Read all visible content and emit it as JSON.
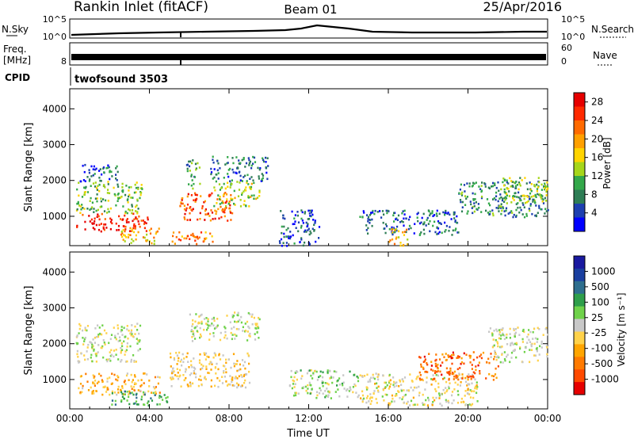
{
  "header": {
    "station": "Rankin Inlet (fitACF)",
    "beam": "Beam 01",
    "date": "25/Apr/2016"
  },
  "noise_panel": {
    "left_label": "N.Sky",
    "right_label": "N.Search",
    "left_ticks": [
      "10^5",
      "10^0"
    ],
    "right_ticks": [
      "10^5",
      "10^0"
    ]
  },
  "freq_panel": {
    "left_label_1": "Freq.",
    "left_label_2": "[MHz]",
    "right_label": "Nave",
    "left_ticks": [
      "8"
    ],
    "right_ticks": [
      "60",
      "0"
    ]
  },
  "cpid": {
    "label": "CPID",
    "value": "twofsound 3503"
  },
  "colors": {
    "power_scale": [
      "#0000ff",
      "#1d3fb0",
      "#2e7d55",
      "#33a84a",
      "#a6d61a",
      "#ffd400",
      "#ffa000",
      "#ff6a00",
      "#ff2a00",
      "#e60000"
    ],
    "velocity_scale": [
      "#e60000",
      "#ff4a00",
      "#ff7a00",
      "#ffa500",
      "#ffd24a",
      "#c8c8c8",
      "#6fd24a",
      "#2e9e4a",
      "#2e6e8e",
      "#1a3fa0",
      "#1a1aa0"
    ]
  },
  "chart_data": [
    {
      "type": "heatmap",
      "name": "power",
      "ylabel": "Slant Range [km]",
      "xlabel": "Time UT",
      "x_ticks": [
        "00:00",
        "04:00",
        "08:00",
        "12:00",
        "16:00",
        "20:00",
        "00:00"
      ],
      "y_ticks": [
        "1000",
        "2000",
        "3000",
        "4000"
      ],
      "ylim": [
        180,
        4560
      ],
      "xlim_hours": [
        0,
        24
      ],
      "colorbar": {
        "label": "Power [dB]",
        "ticks": [
          "4",
          "8",
          "12",
          "16",
          "20",
          "24",
          "28"
        ],
        "range": [
          0,
          30
        ]
      },
      "echo_regions": [
        {
          "t0": 0.3,
          "t1": 3.9,
          "r0": 600,
          "r1": 1100,
          "value": 26
        },
        {
          "t0": 0.3,
          "t1": 3.6,
          "r0": 1100,
          "r1": 2000,
          "value": 12
        },
        {
          "t0": 0.5,
          "t1": 2.5,
          "r0": 2000,
          "r1": 2500,
          "value": 6
        },
        {
          "t0": 2.5,
          "t1": 4.5,
          "r0": 250,
          "r1": 700,
          "value": 18
        },
        {
          "t0": 5.0,
          "t1": 7.2,
          "r0": 250,
          "r1": 600,
          "value": 22
        },
        {
          "t0": 5.5,
          "t1": 8.2,
          "r0": 900,
          "r1": 1700,
          "value": 24
        },
        {
          "t0": 5.8,
          "t1": 6.5,
          "r0": 1800,
          "r1": 2600,
          "value": 10
        },
        {
          "t0": 7.2,
          "t1": 9.5,
          "r0": 1300,
          "r1": 2000,
          "value": 14
        },
        {
          "t0": 7.0,
          "t1": 10.0,
          "r0": 2000,
          "r1": 2700,
          "value": 7
        },
        {
          "t0": 10.5,
          "t1": 12.5,
          "r0": 200,
          "r1": 1200,
          "value": 5
        },
        {
          "t0": 14.5,
          "t1": 19.5,
          "r0": 500,
          "r1": 1200,
          "value": 6
        },
        {
          "t0": 16.0,
          "t1": 17.0,
          "r0": 200,
          "r1": 700,
          "value": 18
        },
        {
          "t0": 19.5,
          "t1": 24.0,
          "r0": 1000,
          "r1": 2000,
          "value": 8
        },
        {
          "t0": 21.5,
          "t1": 24.0,
          "r0": 1400,
          "r1": 2100,
          "value": 13
        }
      ]
    },
    {
      "type": "heatmap",
      "name": "velocity",
      "ylabel": "Slant Range [km]",
      "xlabel": "Time UT",
      "x_ticks": [
        "00:00",
        "04:00",
        "08:00",
        "12:00",
        "16:00",
        "20:00",
        "00:00"
      ],
      "y_ticks": [
        "1000",
        "2000",
        "3000",
        "4000"
      ],
      "ylim": [
        180,
        4560
      ],
      "xlim_hours": [
        0,
        24
      ],
      "colorbar": {
        "label": "Velocity [m s⁻¹]",
        "ticks": [
          "1000",
          "500",
          "100",
          "25",
          "-25",
          "-100",
          "-500",
          "-1000"
        ]
      },
      "echo_regions": [
        {
          "t0": 0.3,
          "t1": 4.5,
          "r0": 600,
          "r1": 1200,
          "value": -300
        },
        {
          "t0": 0.3,
          "t1": 3.5,
          "r0": 1500,
          "r1": 2600,
          "value": 0
        },
        {
          "t0": 2.0,
          "t1": 5.0,
          "r0": 300,
          "r1": 700,
          "value": 300
        },
        {
          "t0": 5.0,
          "t1": 9.0,
          "r0": 800,
          "r1": 1800,
          "value": -200
        },
        {
          "t0": 6.0,
          "t1": 9.5,
          "r0": 2100,
          "r1": 2900,
          "value": 0
        },
        {
          "t0": 11.0,
          "t1": 14.5,
          "r0": 500,
          "r1": 1300,
          "value": 80
        },
        {
          "t0": 14.5,
          "t1": 20.5,
          "r0": 300,
          "r1": 1200,
          "value": -80
        },
        {
          "t0": 17.5,
          "t1": 21.5,
          "r0": 1000,
          "r1": 1800,
          "value": -600
        },
        {
          "t0": 21.0,
          "t1": 24.0,
          "r0": 1500,
          "r1": 2500,
          "value": 0
        }
      ]
    }
  ]
}
